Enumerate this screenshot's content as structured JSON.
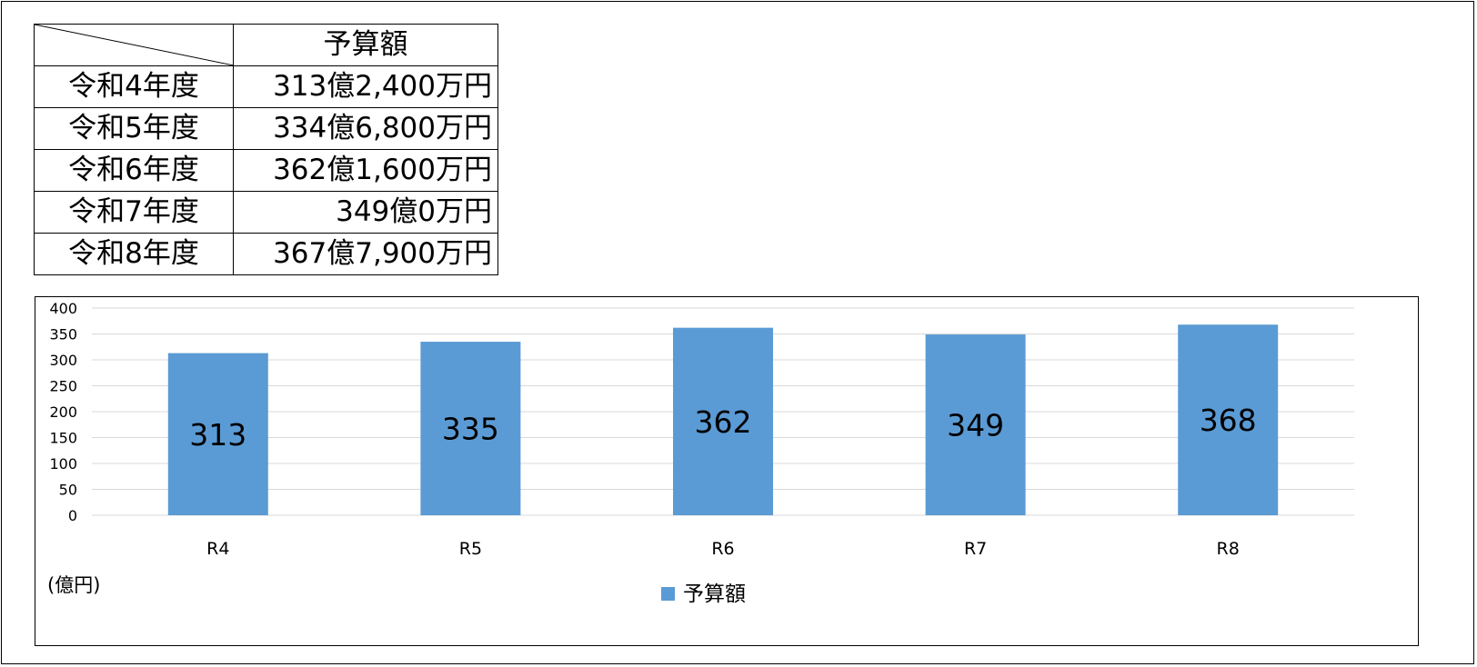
{
  "table": {
    "header": "予算額",
    "rows": [
      {
        "year": "令和4年度",
        "amount": "313億2,400万円"
      },
      {
        "year": "令和5年度",
        "amount": "334億6,800万円"
      },
      {
        "year": "令和6年度",
        "amount": "362億1,600万円"
      },
      {
        "year": "令和7年度",
        "amount": "349億0万円"
      },
      {
        "year": "令和8年度",
        "amount": "367億7,900万円"
      }
    ]
  },
  "chart_data": {
    "type": "bar",
    "categories": [
      "R4",
      "R5",
      "R6",
      "R7",
      "R8"
    ],
    "series": [
      {
        "name": "予算額",
        "values": [
          313,
          335,
          362,
          349,
          368
        ]
      }
    ],
    "data_labels": [
      "313",
      "335",
      "362",
      "349",
      "368"
    ],
    "ylim": [
      0,
      400
    ],
    "yticks": [
      0,
      50,
      100,
      150,
      200,
      250,
      300,
      350,
      400
    ],
    "unit_label": "(億円)",
    "grid": true,
    "legend": "bottom",
    "bar_color": "#5b9bd5"
  }
}
